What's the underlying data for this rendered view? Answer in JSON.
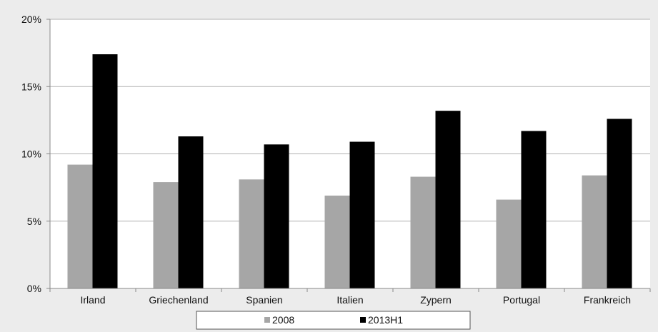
{
  "chart_data": {
    "type": "bar",
    "title": "",
    "xlabel": "",
    "ylabel": "",
    "categories": [
      "Irland",
      "Griechenland",
      "Spanien",
      "Italien",
      "Zypern",
      "Portugal",
      "Frankreich"
    ],
    "series": [
      {
        "name": "2008",
        "color": "#a6a6a6",
        "values": [
          9.2,
          7.9,
          8.1,
          6.9,
          8.3,
          6.6,
          8.4
        ]
      },
      {
        "name": "2013H1",
        "color": "#000000",
        "values": [
          17.4,
          11.3,
          10.7,
          10.9,
          13.2,
          11.7,
          12.6
        ]
      }
    ],
    "ylim": [
      0,
      20
    ],
    "yticks": [
      0,
      5,
      10,
      15,
      20
    ],
    "ytick_labels": [
      "0%",
      "5%",
      "10%",
      "15%",
      "20%"
    ],
    "grid": true,
    "legend_position": "bottom",
    "plot_background": "#ffffff",
    "gridline_color": "#b0b0b0"
  }
}
